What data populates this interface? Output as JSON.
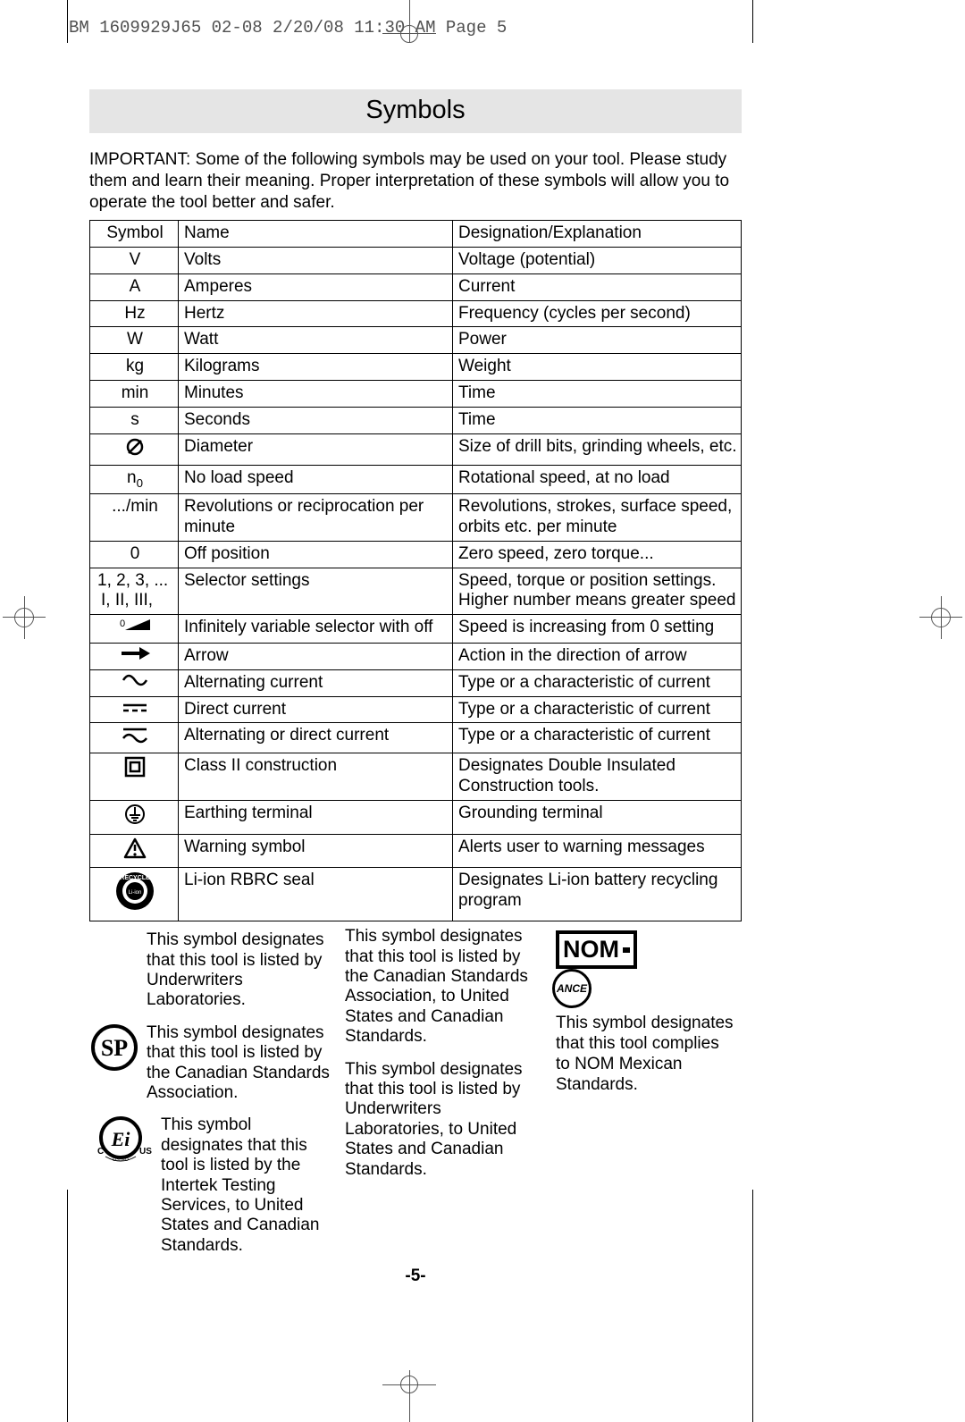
{
  "header_line": "BM 1609929J65 02-08  2/20/08  11:30 AM  Page 5",
  "title": "Symbols",
  "intro": "IMPORTANT: Some of the following symbols may be used on your tool.  Please study them and learn their meaning.  Proper interpretation of these symbols will allow you to operate the tool better and safer.",
  "thead": {
    "c1": "Symbol",
    "c2": "Name",
    "c3": "Designation/Explanation"
  },
  "rows": [
    {
      "sym": "V",
      "name": "Volts",
      "expl": "Voltage (potential)"
    },
    {
      "sym": "A",
      "name": "Amperes",
      "expl": "Current"
    },
    {
      "sym": "Hz",
      "name": "Hertz",
      "expl": "Frequency (cycles per second)"
    },
    {
      "sym": "W",
      "name": "Watt",
      "expl": "Power"
    },
    {
      "sym": "kg",
      "name": "Kilograms",
      "expl": "Weight"
    },
    {
      "sym": "min",
      "name": "Minutes",
      "expl": "Time"
    },
    {
      "sym": "s",
      "name": "Seconds",
      "expl": "Time"
    },
    {
      "sym": "diameter",
      "name": "Diameter",
      "expl": "Size of drill bits, grinding wheels,  etc."
    },
    {
      "sym": "n0",
      "name": "No load speed",
      "expl": "Rotational speed, at no load"
    },
    {
      "sym": ".../min",
      "name": "Revolutions or reciprocation per minute",
      "expl": "Revolutions, strokes, surface speed, orbits etc. per minute"
    },
    {
      "sym": "0",
      "name": "Off position",
      "expl": "Zero speed, zero torque..."
    },
    {
      "sym_a": "1, 2, 3, ...",
      "sym_b": "I, II, III,",
      "name": "Selector settings",
      "expl": "Speed, torque or position settings. Higher number means greater speed"
    },
    {
      "sym": "inf-var",
      "name": "Infinitely variable selector with off",
      "expl": "Speed is increasing from 0 setting"
    },
    {
      "sym": "arrow",
      "name": "Arrow",
      "expl": "Action in the direction of arrow"
    },
    {
      "sym": "ac",
      "name": "Alternating current",
      "expl": "Type or a characteristic of current"
    },
    {
      "sym": "dc",
      "name": "Direct current",
      "expl": "Type or a characteristic of current"
    },
    {
      "sym": "acdc",
      "name": "Alternating or direct current",
      "expl": "Type or a characteristic of current"
    },
    {
      "sym": "class2",
      "name": "Class II  construction",
      "expl": "Designates Double Insulated Construction tools."
    },
    {
      "sym": "earth",
      "name": "Earthing terminal",
      "expl": "Grounding terminal"
    },
    {
      "sym": "warning",
      "name": "Warning symbol",
      "expl": "Alerts user to warning messages"
    },
    {
      "sym": "rbrc",
      "name": "Li-ion RBRC seal",
      "expl": "Designates Li-ion battery recycling program"
    }
  ],
  "cert_ul": "This symbol designates that this tool is listed by Underwriters Laboratories.",
  "cert_csa": "This symbol designates that this tool is listed by the Canadian Standards Association.",
  "cert_csa_us": "This symbol designates that this tool is listed by the Canadian Standards Association, to United States and Canadian Standards.",
  "cert_cul_us": "This symbol designates that this tool is listed by Underwriters Laboratories, to United States and Canadian Standards.",
  "cert_etl": "This symbol designates that this tool is listed by the Intertek Testing Services, to United States and Canadian Standards.",
  "cert_nom": "This symbol designates that  this tool complies to NOM Mexican Standards.",
  "pagenum": "-5-"
}
